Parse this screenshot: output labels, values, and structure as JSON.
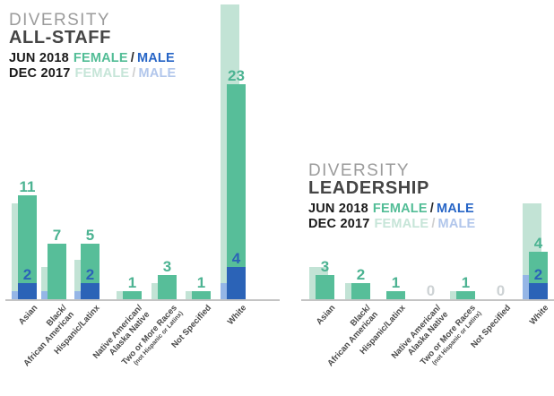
{
  "colors": {
    "jun_female": "#57BE99",
    "jun_male": "#2B63B7",
    "dec_female": "#C2E3D5",
    "dec_male": "#95B6E6",
    "label_green": "#4CB392",
    "label_blue": "#2B63B7",
    "label_zero": "#CDD2D4",
    "axis_line": "#C4C4C4",
    "title_gray": "#9B9B9B",
    "title_dark": "#454545",
    "xlabel": "#4A4A4A"
  },
  "chart_data": [
    {
      "type": "bar",
      "stacked": true,
      "grid": false,
      "title": "DIVERSITY",
      "subtitle": "ALL-STAFF",
      "legend": {
        "row1": {
          "period": "JUN 2018",
          "female": "FEMALE",
          "sep": "/",
          "male": "MALE"
        },
        "row2": {
          "period": "DEC 2017",
          "female": "FEMALE",
          "sep": "/",
          "male": "MALE"
        }
      },
      "categories": [
        "Asian",
        "Black/African American",
        "Hispanic/Latinx",
        "Native American/Alaska Native",
        "Two or More Races (not Hispanic or Latinx)",
        "Not Specified",
        "White"
      ],
      "category_display_lines": [
        [
          "Asian"
        ],
        [
          "Black/",
          "African American"
        ],
        [
          "Hispanic/Latinx"
        ],
        [
          "Native American/",
          "Alaska Native"
        ],
        [
          "Two or More Races",
          "(not Hispanic or Latinx)"
        ],
        [
          "Not Specified"
        ],
        [
          "White"
        ]
      ],
      "series": [
        {
          "name": "JUN 2018 FEMALE",
          "color_key": "jun_female",
          "labeled": true,
          "values": [
            11,
            7,
            5,
            1,
            3,
            1,
            23
          ]
        },
        {
          "name": "JUN 2018 MALE",
          "color_key": "jun_male",
          "labeled": true,
          "values": [
            2,
            0,
            2,
            0,
            0,
            0,
            4
          ]
        },
        {
          "name": "DEC 2017 FEMALE",
          "color_key": "dec_female",
          "labeled": false,
          "note": "unlabeled in chart; estimated from bar heights",
          "values": [
            11,
            3,
            4,
            1,
            2,
            1,
            35
          ]
        },
        {
          "name": "DEC 2017 MALE",
          "color_key": "dec_male",
          "labeled": false,
          "note": "unlabeled in chart; estimated from bar heights",
          "values": [
            1,
            1,
            1,
            0,
            0,
            0,
            2
          ]
        }
      ],
      "ylim": [
        0,
        37
      ]
    },
    {
      "type": "bar",
      "stacked": true,
      "grid": false,
      "title": "DIVERSITY",
      "subtitle": "LEADERSHIP",
      "legend": {
        "row1": {
          "period": "JUN 2018",
          "female": "FEMALE",
          "sep": "/",
          "male": "MALE"
        },
        "row2": {
          "period": "DEC 2017",
          "female": "FEMALE",
          "sep": "/",
          "male": "MALE"
        }
      },
      "categories": [
        "Asian",
        "Black/African American",
        "Hispanic/Latinx",
        "Native American/Alaska Native",
        "Two or More Races (not Hispanic or Latinx)",
        "Not Specified",
        "White"
      ],
      "category_display_lines": [
        [
          "Asian"
        ],
        [
          "Black/",
          "African American"
        ],
        [
          "Hispanic/Latinx"
        ],
        [
          "Native American/",
          "Alaska Native"
        ],
        [
          "Two or More Races",
          "(not Hispanic or Latinx)"
        ],
        [
          "Not Specified"
        ],
        [
          "White"
        ]
      ],
      "series": [
        {
          "name": "JUN 2018 FEMALE",
          "color_key": "jun_female",
          "labeled": true,
          "values": [
            3,
            2,
            1,
            0,
            1,
            0,
            4
          ]
        },
        {
          "name": "JUN 2018 MALE",
          "color_key": "jun_male",
          "labeled": true,
          "values": [
            0,
            0,
            0,
            0,
            0,
            0,
            2
          ]
        },
        {
          "name": "DEC 2017 FEMALE",
          "color_key": "dec_female",
          "labeled": false,
          "note": "unlabeled in chart; estimated from bar heights",
          "values": [
            4,
            2,
            0,
            0,
            1,
            0,
            9
          ]
        },
        {
          "name": "DEC 2017 MALE",
          "color_key": "dec_male",
          "labeled": false,
          "note": "unlabeled in chart; estimated from bar heights",
          "values": [
            0,
            0,
            0,
            0,
            0,
            0,
            3
          ]
        }
      ],
      "ylim": [
        0,
        37
      ]
    }
  ]
}
